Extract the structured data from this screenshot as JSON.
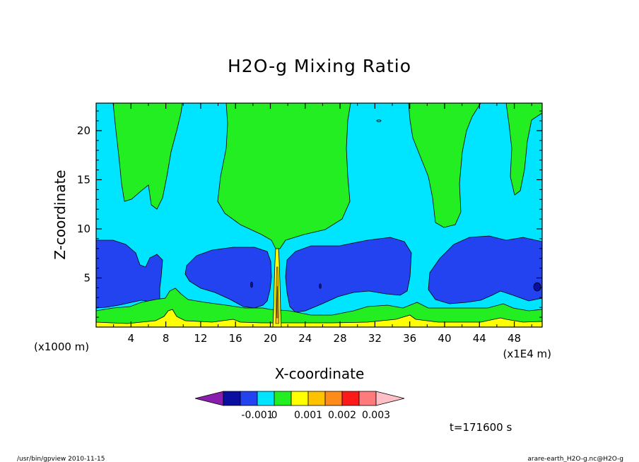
{
  "chart_data": {
    "type": "heatmap",
    "title": "H2O-g Mixing Ratio",
    "xlabel": "X-coordinate",
    "ylabel": "Z-coordinate",
    "x_unit": "(x1E4 m)",
    "y_unit": "(x1000 m)",
    "x_ticks": [
      "4",
      "8",
      "12",
      "16",
      "20",
      "24",
      "28",
      "32",
      "36",
      "40",
      "44",
      "48"
    ],
    "y_ticks": [
      "5",
      "10",
      "15",
      "20"
    ],
    "xlim": [
      0,
      51.2
    ],
    "ylim": [
      0,
      22.8
    ],
    "colorbar": {
      "ticks": [
        "-0.001",
        "0",
        "0.001",
        "0.002",
        "0.003"
      ],
      "levels": [
        -0.003,
        -0.0025,
        -0.002,
        -0.0015,
        -0.001,
        -0.0005,
        0,
        0.0005,
        0.001,
        0.0015,
        0.002,
        0.0025,
        0.003
      ],
      "colors": [
        "#8a1fae",
        "#0a0fa0",
        "#2343f0",
        "#00e5ff",
        "#22ee22",
        "#ffff00",
        "#ffc200",
        "#ff8c1a",
        "#ff1a1a",
        "#ff7b7b",
        "#ffbfc6"
      ]
    },
    "time_label": "t=171600 s"
  },
  "footer": {
    "left": "/usr/bin/gpview   2010-11-15",
    "right": "arare-earth_H2O-g.nc@H2O-g"
  }
}
